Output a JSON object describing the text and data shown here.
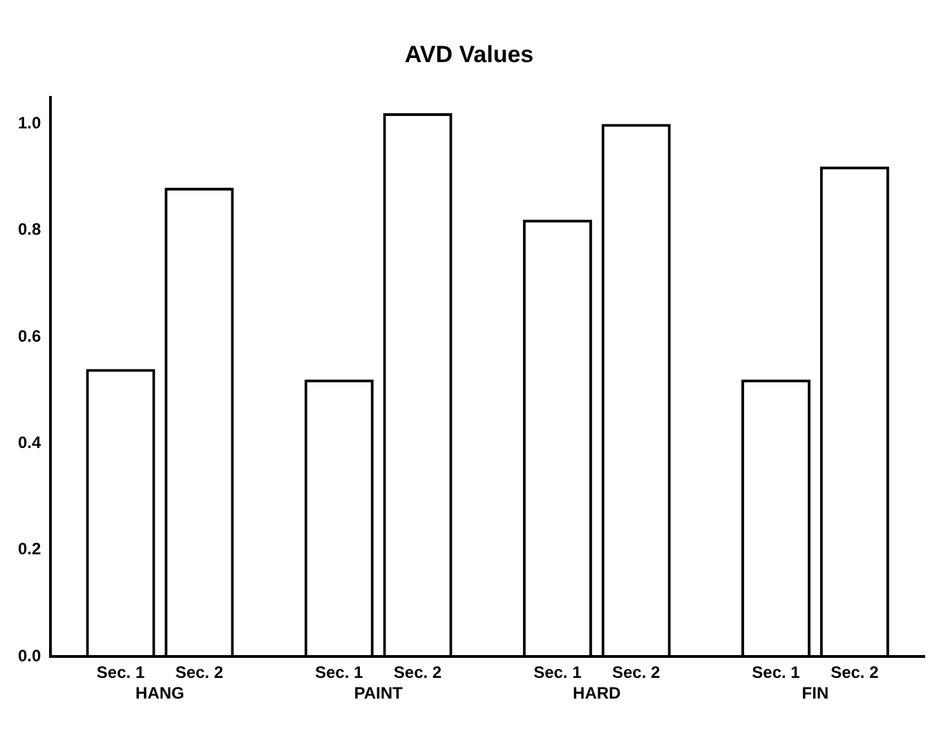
{
  "chart_data": {
    "type": "bar",
    "title": "AVD Values",
    "categories": [
      "HANG",
      "PAINT",
      "HARD",
      "FIN"
    ],
    "series": [
      {
        "name": "Sec. 1",
        "color": "#000000",
        "values": [
          0.54,
          0.52,
          0.82,
          0.52
        ]
      },
      {
        "name": "Sec. 2",
        "color": "#000000",
        "values": [
          0.88,
          1.02,
          1.0,
          0.92
        ]
      }
    ],
    "ylim": [
      0,
      1.05
    ],
    "yticks": [
      {
        "value": 0,
        "label": "0.0"
      },
      0.2,
      0.4,
      0.6,
      0.8,
      {
        "value": 1,
        "label": "1.0"
      }
    ],
    "grid": false,
    "legend": false
  }
}
